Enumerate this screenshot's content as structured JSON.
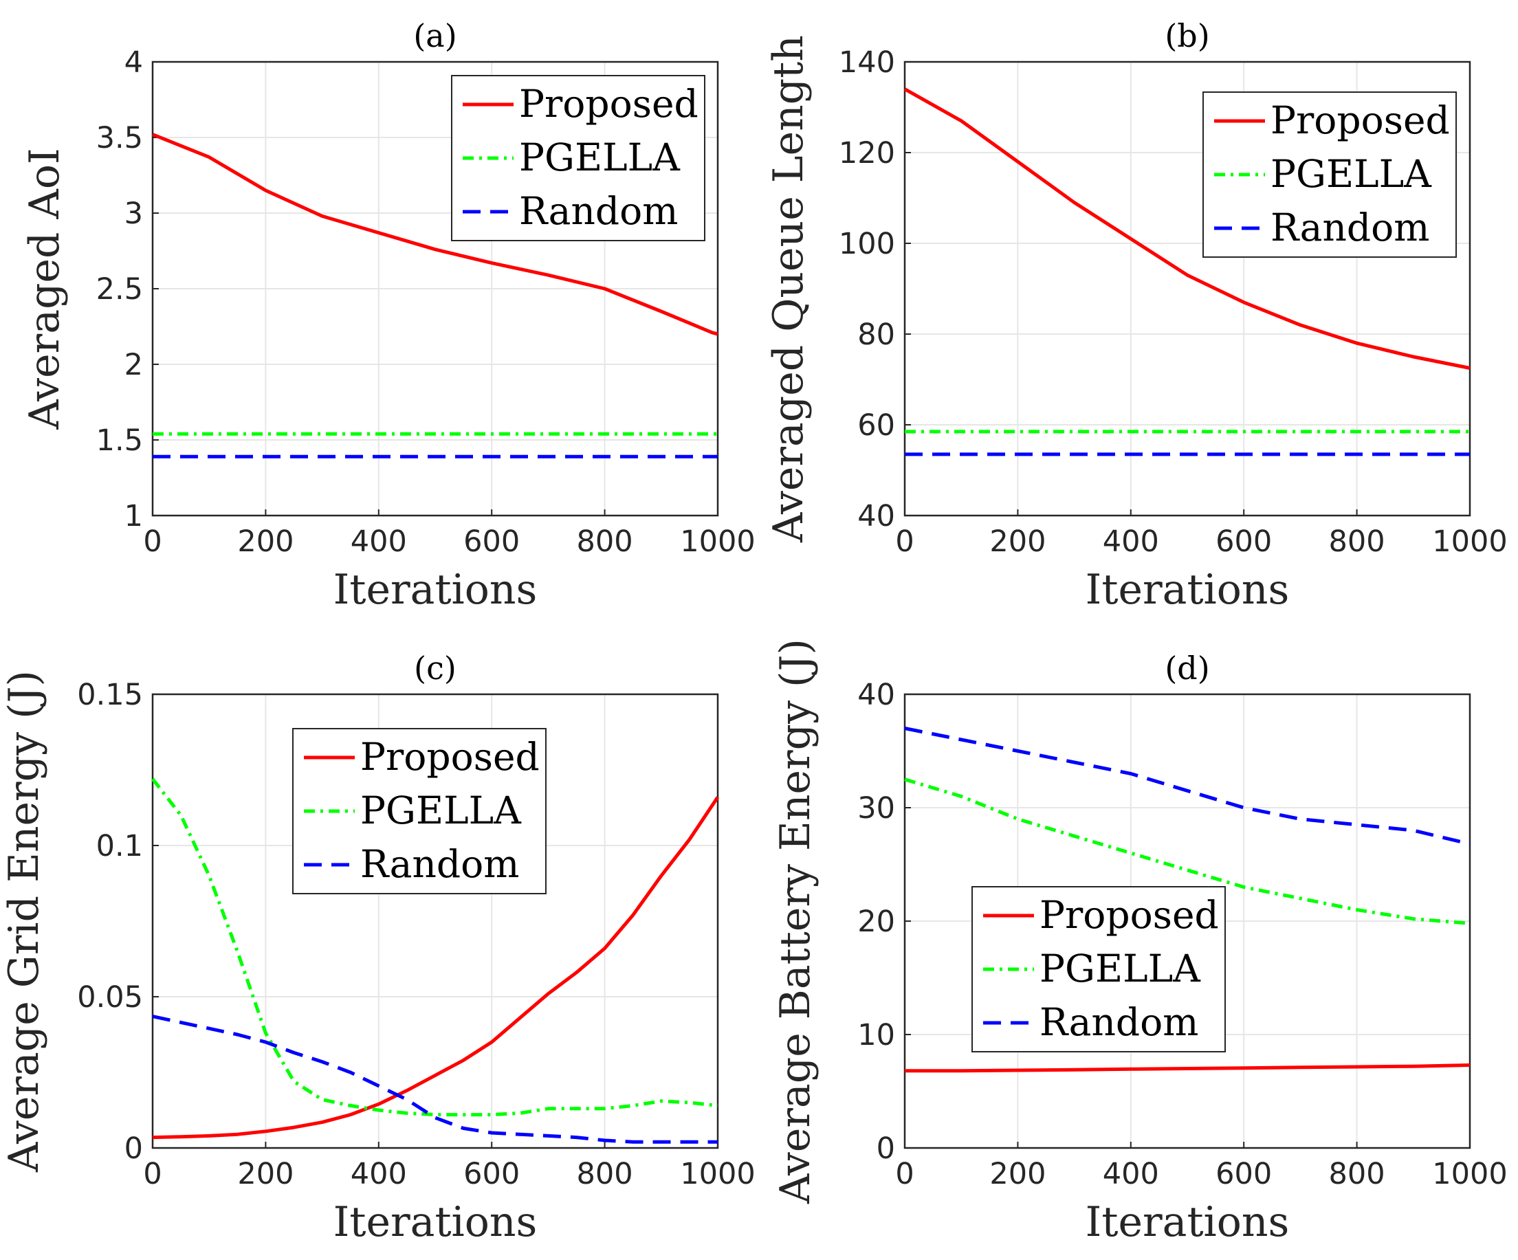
{
  "figure": {
    "colors": {
      "Proposed": "#ff0000",
      "PGELLA": "#00ff00",
      "Random": "#0000ff"
    }
  },
  "chart_data": [
    {
      "id": "a",
      "type": "line",
      "title": "(a)",
      "xlabel": "Iterations",
      "ylabel": "Averaged AoI",
      "xlim": [
        0,
        1000
      ],
      "ylim": [
        1,
        4
      ],
      "xticks": [
        "0",
        "200",
        "400",
        "600",
        "800",
        "1000"
      ],
      "yticks": [
        "1",
        "1.5",
        "2",
        "2.5",
        "3",
        "3.5",
        "4"
      ],
      "grid": true,
      "legend_position": "top-right",
      "x": [
        0,
        100,
        200,
        300,
        400,
        500,
        600,
        700,
        800,
        900,
        990,
        1000
      ],
      "series": [
        {
          "name": "Proposed",
          "style": "solid",
          "values": [
            3.52,
            3.37,
            3.15,
            2.98,
            2.87,
            2.76,
            2.67,
            2.59,
            2.5,
            2.35,
            2.21,
            2.2
          ]
        },
        {
          "name": "PGELLA",
          "style": "dashdot",
          "values": [
            1.54,
            1.54,
            1.54,
            1.54,
            1.54,
            1.54,
            1.54,
            1.54,
            1.54,
            1.54,
            1.54,
            1.54
          ]
        },
        {
          "name": "Random",
          "style": "dashed",
          "values": [
            1.39,
            1.39,
            1.39,
            1.39,
            1.39,
            1.39,
            1.39,
            1.39,
            1.39,
            1.39,
            1.39,
            1.39
          ]
        }
      ]
    },
    {
      "id": "b",
      "type": "line",
      "title": "(b)",
      "xlabel": "Iterations",
      "ylabel": "Averaged Queue Length",
      "xlim": [
        0,
        1000
      ],
      "ylim": [
        40,
        140
      ],
      "xticks": [
        "0",
        "200",
        "400",
        "600",
        "800",
        "1000"
      ],
      "yticks": [
        "40",
        "60",
        "80",
        "100",
        "120",
        "140"
      ],
      "grid": true,
      "legend_position": "top-right",
      "x": [
        0,
        100,
        200,
        300,
        400,
        500,
        600,
        700,
        800,
        900,
        1000
      ],
      "series": [
        {
          "name": "Proposed",
          "style": "solid",
          "values": [
            134,
            127,
            118,
            109,
            101,
            93,
            87,
            82,
            78,
            75,
            72.5
          ]
        },
        {
          "name": "PGELLA",
          "style": "dashdot",
          "values": [
            58.5,
            58.5,
            58.5,
            58.5,
            58.5,
            58.5,
            58.5,
            58.5,
            58.5,
            58.5,
            58.5
          ]
        },
        {
          "name": "Random",
          "style": "dashed",
          "values": [
            53.5,
            53.5,
            53.5,
            53.5,
            53.5,
            53.5,
            53.5,
            53.5,
            53.5,
            53.5,
            53.5
          ]
        }
      ]
    },
    {
      "id": "c",
      "type": "line",
      "title": "(c)",
      "xlabel": "Iterations",
      "ylabel": "Average Grid Energy (J)",
      "xlim": [
        0,
        1000
      ],
      "ylim": [
        0,
        0.15
      ],
      "xticks": [
        "0",
        "200",
        "400",
        "600",
        "800",
        "1000"
      ],
      "yticks": [
        "0",
        "0.05",
        "0.1",
        "0.15"
      ],
      "grid": true,
      "legend_position": "top-center",
      "x": [
        0,
        50,
        100,
        150,
        200,
        250,
        300,
        350,
        400,
        450,
        500,
        550,
        600,
        650,
        700,
        750,
        800,
        850,
        900,
        950,
        1000
      ],
      "series": [
        {
          "name": "Proposed",
          "style": "solid",
          "values": [
            0.0035,
            0.0037,
            0.004,
            0.0045,
            0.0055,
            0.0068,
            0.0085,
            0.011,
            0.0145,
            0.019,
            0.024,
            0.029,
            0.035,
            0.043,
            0.051,
            0.058,
            0.066,
            0.077,
            0.09,
            0.102,
            0.116
          ]
        },
        {
          "name": "PGELLA",
          "style": "dashdot",
          "values": [
            0.122,
            0.11,
            0.09,
            0.065,
            0.038,
            0.022,
            0.016,
            0.014,
            0.0125,
            0.0115,
            0.011,
            0.011,
            0.011,
            0.0115,
            0.013,
            0.013,
            0.013,
            0.014,
            0.0155,
            0.015,
            0.014
          ]
        },
        {
          "name": "Random",
          "style": "dashed",
          "values": [
            0.0435,
            0.0415,
            0.0395,
            0.0375,
            0.035,
            0.0315,
            0.0285,
            0.025,
            0.0205,
            0.016,
            0.01,
            0.0065,
            0.005,
            0.0045,
            0.004,
            0.0035,
            0.0025,
            0.002,
            0.002,
            0.002,
            0.002
          ]
        }
      ]
    },
    {
      "id": "d",
      "type": "line",
      "title": "(d)",
      "xlabel": "Iterations",
      "ylabel": "Average Battery Energy (J)",
      "xlim": [
        0,
        1000
      ],
      "ylim": [
        0,
        40
      ],
      "xticks": [
        "0",
        "200",
        "400",
        "600",
        "800",
        "1000"
      ],
      "yticks": [
        "0",
        "10",
        "20",
        "30",
        "40"
      ],
      "grid": true,
      "legend_position": "center-left",
      "x": [
        0,
        100,
        200,
        300,
        400,
        500,
        600,
        700,
        800,
        900,
        1000
      ],
      "series": [
        {
          "name": "Proposed",
          "style": "solid",
          "values": [
            6.8,
            6.8,
            6.85,
            6.9,
            6.95,
            7.0,
            7.05,
            7.1,
            7.15,
            7.2,
            7.3
          ]
        },
        {
          "name": "PGELLA",
          "style": "dashdot",
          "values": [
            32.5,
            31.0,
            29.0,
            27.5,
            26.0,
            24.5,
            23.0,
            22.0,
            21.0,
            20.2,
            19.8
          ]
        },
        {
          "name": "Random",
          "style": "dashed",
          "values": [
            37.0,
            36.0,
            35.0,
            34.0,
            33.0,
            31.5,
            30.0,
            29.0,
            28.5,
            28.0,
            26.8
          ]
        }
      ]
    }
  ]
}
